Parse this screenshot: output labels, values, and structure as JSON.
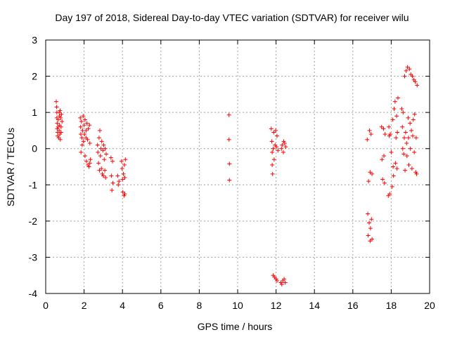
{
  "chart_data": {
    "type": "scatter",
    "title": "Day 197 of 2018, Sidereal Day-to-day VTEC variation (SDTVAR) for receiver wilu",
    "xlabel": "GPS time / hours",
    "ylabel": "SDTVAR / TECUs",
    "xlim": [
      0,
      20
    ],
    "ylim": [
      -4,
      3
    ],
    "xticks": [
      "0",
      "2",
      "4",
      "6",
      "8",
      "10",
      "12",
      "14",
      "16",
      "18",
      "20"
    ],
    "yticks": [
      "-4",
      "-3",
      "-2",
      "-1",
      "0",
      "1",
      "2",
      "3"
    ],
    "grid": true,
    "marker": "plus",
    "series": [
      {
        "name": "SDTVAR",
        "color": "#ff0000",
        "points": [
          [
            0.55,
            1.3
          ],
          [
            0.57,
            1.15
          ],
          [
            0.58,
            1.0
          ],
          [
            0.58,
            0.85
          ],
          [
            0.6,
            0.7
          ],
          [
            0.6,
            0.55
          ],
          [
            0.62,
            0.45
          ],
          [
            0.62,
            0.35
          ],
          [
            0.65,
            0.8
          ],
          [
            0.65,
            0.6
          ],
          [
            0.68,
            0.3
          ],
          [
            0.7,
            1.0
          ],
          [
            0.7,
            0.5
          ],
          [
            0.72,
            0.9
          ],
          [
            0.72,
            0.65
          ],
          [
            0.74,
            0.4
          ],
          [
            0.75,
            1.05
          ],
          [
            0.76,
            0.25
          ],
          [
            0.78,
            0.85
          ],
          [
            0.8,
            0.6
          ],
          [
            0.8,
            0.45
          ],
          [
            0.82,
            0.95
          ],
          [
            0.85,
            0.75
          ],
          [
            1.8,
            0.85
          ],
          [
            1.82,
            0.6
          ],
          [
            1.83,
            0.4
          ],
          [
            1.84,
            -0.1
          ],
          [
            1.86,
            0.75
          ],
          [
            1.88,
            0.3
          ],
          [
            1.9,
            0.1
          ],
          [
            1.92,
            0.5
          ],
          [
            1.95,
            0.9
          ],
          [
            1.97,
            0.2
          ],
          [
            2.0,
            0.65
          ],
          [
            2.02,
            0.4
          ],
          [
            2.05,
            0.8
          ],
          [
            2.05,
            -0.2
          ],
          [
            2.1,
            0.3
          ],
          [
            2.1,
            0.5
          ],
          [
            2.12,
            -0.35
          ],
          [
            2.15,
            0.7
          ],
          [
            2.18,
            0.25
          ],
          [
            2.2,
            -0.45
          ],
          [
            2.22,
            0.55
          ],
          [
            2.25,
            -0.5
          ],
          [
            2.28,
            0.65
          ],
          [
            2.3,
            -0.4
          ],
          [
            2.3,
            0.15
          ],
          [
            2.33,
            -0.3
          ],
          [
            2.7,
            0.1
          ],
          [
            2.72,
            -0.1
          ],
          [
            2.75,
            -0.4
          ],
          [
            2.78,
            0.3
          ],
          [
            2.8,
            -0.6
          ],
          [
            2.82,
            0.5
          ],
          [
            2.85,
            -0.2
          ],
          [
            2.88,
            0.0
          ],
          [
            2.9,
            -0.55
          ],
          [
            2.92,
            0.2
          ],
          [
            2.95,
            -0.7
          ],
          [
            2.98,
            -0.05
          ],
          [
            3.0,
            -0.75
          ],
          [
            3.02,
            0.1
          ],
          [
            3.05,
            -0.3
          ],
          [
            3.08,
            -0.6
          ],
          [
            3.1,
            0.0
          ],
          [
            3.12,
            -0.8
          ],
          [
            3.15,
            -0.15
          ],
          [
            3.4,
            -0.25
          ],
          [
            3.42,
            -0.75
          ],
          [
            3.45,
            -1.15
          ],
          [
            3.48,
            -0.35
          ],
          [
            3.5,
            -0.95
          ],
          [
            3.75,
            -0.75
          ],
          [
            3.78,
            -1.0
          ],
          [
            3.82,
            -0.9
          ],
          [
            3.95,
            -0.35
          ],
          [
            3.98,
            -0.55
          ],
          [
            4.0,
            -0.85
          ],
          [
            4.02,
            -1.2
          ],
          [
            4.05,
            -0.7
          ],
          [
            4.08,
            -1.3
          ],
          [
            4.1,
            -0.45
          ],
          [
            4.12,
            -0.8
          ],
          [
            4.12,
            -1.25
          ],
          [
            4.15,
            -0.3
          ],
          [
            9.55,
            0.93
          ],
          [
            9.55,
            0.25
          ],
          [
            9.57,
            -0.42
          ],
          [
            9.57,
            -0.87
          ],
          [
            11.75,
            0.55
          ],
          [
            11.78,
            0.2
          ],
          [
            11.8,
            -0.1
          ],
          [
            11.8,
            -0.45
          ],
          [
            11.82,
            -0.7
          ],
          [
            11.85,
            0.0
          ],
          [
            11.85,
            -3.5
          ],
          [
            11.88,
            0.45
          ],
          [
            11.9,
            -0.3
          ],
          [
            11.92,
            -3.55
          ],
          [
            11.95,
            0.1
          ],
          [
            11.98,
            0.5
          ],
          [
            12.0,
            -3.6
          ],
          [
            12.02,
            0.05
          ],
          [
            12.05,
            0.35
          ],
          [
            12.05,
            -3.65
          ],
          [
            12.1,
            -0.05
          ],
          [
            12.25,
            -3.7
          ],
          [
            12.28,
            0.0
          ],
          [
            12.3,
            -3.75
          ],
          [
            12.32,
            0.1
          ],
          [
            12.35,
            -3.65
          ],
          [
            12.38,
            -0.1
          ],
          [
            12.4,
            0.2
          ],
          [
            12.42,
            -3.6
          ],
          [
            12.45,
            0.15
          ],
          [
            12.48,
            -3.7
          ],
          [
            12.5,
            0.05
          ],
          [
            16.75,
            0.25
          ],
          [
            16.78,
            -1.8
          ],
          [
            16.8,
            -2.4
          ],
          [
            16.82,
            -0.9
          ],
          [
            16.85,
            -2.05
          ],
          [
            16.87,
            0.5
          ],
          [
            16.9,
            -0.65
          ],
          [
            16.9,
            -2.55
          ],
          [
            16.92,
            -2.2
          ],
          [
            16.95,
            0.4
          ],
          [
            16.97,
            -1.95
          ],
          [
            17.0,
            -0.7
          ],
          [
            17.0,
            -2.5
          ],
          [
            17.5,
            0.6
          ],
          [
            17.52,
            -0.3
          ],
          [
            17.55,
            -0.85
          ],
          [
            17.6,
            0.55
          ],
          [
            17.62,
            -0.2
          ],
          [
            17.65,
            -0.95
          ],
          [
            17.68,
            0.4
          ],
          [
            17.85,
            -1.3
          ],
          [
            17.88,
            0.6
          ],
          [
            17.9,
            0.35
          ],
          [
            17.92,
            -1.25
          ],
          [
            17.95,
            0.4
          ],
          [
            18.0,
            -0.1
          ],
          [
            18.05,
            -1.05
          ],
          [
            18.08,
            0.8
          ],
          [
            18.1,
            -0.5
          ],
          [
            18.12,
            -0.75
          ],
          [
            18.15,
            1.1
          ],
          [
            18.2,
            1.3
          ],
          [
            18.22,
            -0.4
          ],
          [
            18.25,
            0.3
          ],
          [
            18.28,
            0.9
          ],
          [
            18.3,
            -0.55
          ],
          [
            18.32,
            0.45
          ],
          [
            18.35,
            1.4
          ],
          [
            18.55,
            1.1
          ],
          [
            18.58,
            0.6
          ],
          [
            18.6,
            0.0
          ],
          [
            18.62,
            1.0
          ],
          [
            18.65,
            -0.15
          ],
          [
            18.68,
            0.3
          ],
          [
            18.7,
            2.0
          ],
          [
            18.72,
            -0.6
          ],
          [
            18.75,
            0.45
          ],
          [
            18.78,
            2.15
          ],
          [
            18.8,
            0.15
          ],
          [
            18.82,
            -0.2
          ],
          [
            18.85,
            2.25
          ],
          [
            18.88,
            0.85
          ],
          [
            18.9,
            0.3
          ],
          [
            18.92,
            -0.45
          ],
          [
            18.95,
            2.2
          ],
          [
            18.98,
            0.7
          ],
          [
            19.0,
            0.0
          ],
          [
            19.02,
            2.05
          ],
          [
            19.05,
            0.5
          ],
          [
            19.08,
            -0.55
          ],
          [
            19.1,
            2.0
          ],
          [
            19.12,
            0.35
          ],
          [
            19.15,
            0.8
          ],
          [
            19.18,
            1.9
          ],
          [
            19.2,
            -0.1
          ],
          [
            19.22,
            0.95
          ],
          [
            19.25,
            1.85
          ],
          [
            19.28,
            -0.65
          ],
          [
            19.3,
            0.3
          ],
          [
            19.32,
            -0.7
          ],
          [
            19.35,
            1.75
          ]
        ]
      }
    ]
  }
}
